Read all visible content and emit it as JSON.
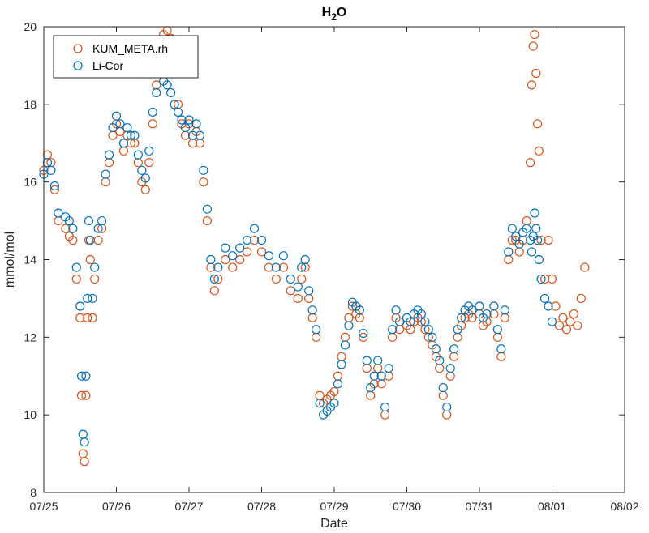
{
  "chart_data": {
    "type": "scatter",
    "title": {
      "main": "H",
      "sub": "2",
      "tail": "O"
    },
    "xlabel": "Date",
    "ylabel": "mmol/mol",
    "x_ticks": [
      "07/25",
      "07/26",
      "07/27",
      "07/28",
      "07/29",
      "07/30",
      "07/31",
      "08/01",
      "08/02"
    ],
    "y_ticks": [
      8,
      10,
      12,
      14,
      16,
      18,
      20
    ],
    "xlim": [
      "07/25",
      "08/02"
    ],
    "ylim": [
      8,
      20
    ],
    "legend": {
      "placement": "top-left"
    },
    "series": [
      {
        "name": "KUM_META.rh",
        "color": "#D95319",
        "marker": "open-circle",
        "points": [
          [
            0.0,
            16.3
          ],
          [
            0.05,
            16.7
          ],
          [
            0.1,
            16.5
          ],
          [
            0.15,
            15.8
          ],
          [
            0.2,
            15.0
          ],
          [
            0.3,
            14.8
          ],
          [
            0.35,
            14.6
          ],
          [
            0.4,
            14.5
          ],
          [
            0.45,
            13.5
          ],
          [
            0.5,
            12.5
          ],
          [
            0.52,
            10.5
          ],
          [
            0.54,
            9.0
          ],
          [
            0.56,
            8.8
          ],
          [
            0.58,
            10.5
          ],
          [
            0.6,
            12.5
          ],
          [
            0.62,
            14.5
          ],
          [
            0.64,
            14.0
          ],
          [
            0.67,
            12.5
          ],
          [
            0.7,
            13.5
          ],
          [
            0.75,
            14.5
          ],
          [
            0.8,
            14.8
          ],
          [
            0.85,
            16.0
          ],
          [
            0.9,
            16.5
          ],
          [
            0.95,
            17.2
          ],
          [
            1.0,
            17.5
          ],
          [
            1.05,
            17.3
          ],
          [
            1.1,
            16.8
          ],
          [
            1.15,
            17.2
          ],
          [
            1.2,
            17.0
          ],
          [
            1.25,
            17.0
          ],
          [
            1.3,
            16.5
          ],
          [
            1.35,
            16.0
          ],
          [
            1.4,
            15.8
          ],
          [
            1.45,
            16.5
          ],
          [
            1.5,
            17.5
          ],
          [
            1.55,
            18.5
          ],
          [
            1.6,
            19.5
          ],
          [
            1.65,
            19.8
          ],
          [
            1.7,
            19.9
          ],
          [
            1.75,
            19.7
          ],
          [
            1.8,
            19.5
          ],
          [
            1.85,
            18.0
          ],
          [
            1.9,
            17.5
          ],
          [
            1.95,
            17.2
          ],
          [
            2.0,
            17.5
          ],
          [
            2.05,
            17.0
          ],
          [
            2.1,
            17.3
          ],
          [
            2.15,
            17.0
          ],
          [
            2.2,
            16.0
          ],
          [
            2.25,
            15.0
          ],
          [
            2.3,
            13.8
          ],
          [
            2.35,
            13.2
          ],
          [
            2.4,
            13.5
          ],
          [
            2.5,
            14.0
          ],
          [
            2.6,
            13.8
          ],
          [
            2.7,
            14.0
          ],
          [
            2.8,
            14.2
          ],
          [
            2.9,
            14.5
          ],
          [
            3.0,
            14.2
          ],
          [
            3.1,
            13.8
          ],
          [
            3.2,
            13.5
          ],
          [
            3.3,
            13.8
          ],
          [
            3.4,
            13.2
          ],
          [
            3.5,
            13.0
          ],
          [
            3.55,
            13.5
          ],
          [
            3.6,
            13.8
          ],
          [
            3.65,
            13.0
          ],
          [
            3.7,
            12.5
          ],
          [
            3.75,
            12.0
          ],
          [
            3.8,
            10.5
          ],
          [
            3.85,
            10.3
          ],
          [
            3.9,
            10.4
          ],
          [
            3.95,
            10.5
          ],
          [
            4.0,
            10.6
          ],
          [
            4.05,
            11.0
          ],
          [
            4.1,
            11.5
          ],
          [
            4.15,
            12.0
          ],
          [
            4.2,
            12.5
          ],
          [
            4.25,
            12.8
          ],
          [
            4.3,
            12.6
          ],
          [
            4.35,
            12.5
          ],
          [
            4.4,
            12.0
          ],
          [
            4.45,
            11.2
          ],
          [
            4.5,
            10.5
          ],
          [
            4.55,
            10.8
          ],
          [
            4.6,
            11.2
          ],
          [
            4.65,
            10.8
          ],
          [
            4.7,
            10.0
          ],
          [
            4.75,
            11.0
          ],
          [
            4.8,
            12.0
          ],
          [
            4.85,
            12.5
          ],
          [
            4.9,
            12.2
          ],
          [
            5.0,
            12.3
          ],
          [
            5.05,
            12.2
          ],
          [
            5.1,
            12.4
          ],
          [
            5.15,
            12.5
          ],
          [
            5.2,
            12.4
          ],
          [
            5.25,
            12.2
          ],
          [
            5.3,
            12.0
          ],
          [
            5.35,
            11.8
          ],
          [
            5.4,
            11.5
          ],
          [
            5.45,
            11.2
          ],
          [
            5.5,
            10.5
          ],
          [
            5.55,
            10.0
          ],
          [
            5.6,
            11.0
          ],
          [
            5.65,
            11.5
          ],
          [
            5.7,
            12.0
          ],
          [
            5.75,
            12.3
          ],
          [
            5.8,
            12.5
          ],
          [
            5.85,
            12.6
          ],
          [
            5.9,
            12.5
          ],
          [
            6.0,
            12.6
          ],
          [
            6.05,
            12.3
          ],
          [
            6.1,
            12.4
          ],
          [
            6.2,
            12.6
          ],
          [
            6.25,
            12.0
          ],
          [
            6.3,
            11.5
          ],
          [
            6.35,
            12.5
          ],
          [
            6.4,
            14.0
          ],
          [
            6.45,
            14.5
          ],
          [
            6.5,
            14.5
          ],
          [
            6.55,
            14.2
          ],
          [
            6.6,
            14.5
          ],
          [
            6.65,
            15.0
          ],
          [
            6.7,
            16.5
          ],
          [
            6.72,
            18.5
          ],
          [
            6.74,
            19.5
          ],
          [
            6.76,
            19.8
          ],
          [
            6.78,
            18.8
          ],
          [
            6.8,
            17.5
          ],
          [
            6.82,
            16.8
          ],
          [
            6.85,
            14.5
          ],
          [
            6.9,
            13.5
          ],
          [
            6.95,
            14.5
          ],
          [
            7.0,
            13.5
          ],
          [
            7.05,
            12.8
          ],
          [
            7.1,
            12.3
          ],
          [
            7.15,
            12.5
          ],
          [
            7.2,
            12.2
          ],
          [
            7.25,
            12.4
          ],
          [
            7.3,
            12.6
          ],
          [
            7.35,
            12.3
          ],
          [
            7.4,
            13.0
          ],
          [
            7.45,
            13.8
          ]
        ]
      },
      {
        "name": "Li-Cor",
        "color": "#0072BD",
        "marker": "open-circle",
        "points": [
          [
            0.0,
            16.2
          ],
          [
            0.05,
            16.5
          ],
          [
            0.1,
            16.3
          ],
          [
            0.15,
            15.9
          ],
          [
            0.2,
            15.2
          ],
          [
            0.3,
            15.1
          ],
          [
            0.35,
            15.0
          ],
          [
            0.4,
            14.8
          ],
          [
            0.45,
            13.8
          ],
          [
            0.5,
            12.8
          ],
          [
            0.52,
            11.0
          ],
          [
            0.54,
            9.5
          ],
          [
            0.56,
            9.3
          ],
          [
            0.58,
            11.0
          ],
          [
            0.6,
            13.0
          ],
          [
            0.62,
            15.0
          ],
          [
            0.64,
            14.5
          ],
          [
            0.67,
            13.0
          ],
          [
            0.7,
            13.8
          ],
          [
            0.75,
            14.8
          ],
          [
            0.8,
            15.0
          ],
          [
            0.85,
            16.2
          ],
          [
            0.9,
            16.7
          ],
          [
            0.95,
            17.4
          ],
          [
            1.0,
            17.7
          ],
          [
            1.05,
            17.5
          ],
          [
            1.1,
            17.0
          ],
          [
            1.15,
            17.4
          ],
          [
            1.2,
            17.2
          ],
          [
            1.25,
            17.2
          ],
          [
            1.3,
            16.7
          ],
          [
            1.35,
            16.3
          ],
          [
            1.4,
            16.1
          ],
          [
            1.45,
            16.8
          ],
          [
            1.5,
            17.8
          ],
          [
            1.55,
            18.3
          ],
          [
            1.6,
            18.8
          ],
          [
            1.65,
            18.6
          ],
          [
            1.7,
            18.5
          ],
          [
            1.75,
            18.3
          ],
          [
            1.8,
            18.0
          ],
          [
            1.85,
            17.8
          ],
          [
            1.9,
            17.6
          ],
          [
            1.95,
            17.4
          ],
          [
            2.0,
            17.6
          ],
          [
            2.05,
            17.2
          ],
          [
            2.1,
            17.5
          ],
          [
            2.15,
            17.2
          ],
          [
            2.2,
            16.3
          ],
          [
            2.25,
            15.3
          ],
          [
            2.3,
            14.0
          ],
          [
            2.35,
            13.5
          ],
          [
            2.4,
            13.8
          ],
          [
            2.5,
            14.3
          ],
          [
            2.6,
            14.1
          ],
          [
            2.7,
            14.3
          ],
          [
            2.8,
            14.5
          ],
          [
            2.9,
            14.8
          ],
          [
            3.0,
            14.5
          ],
          [
            3.1,
            14.1
          ],
          [
            3.2,
            13.8
          ],
          [
            3.3,
            14.1
          ],
          [
            3.4,
            13.5
          ],
          [
            3.5,
            13.3
          ],
          [
            3.55,
            13.8
          ],
          [
            3.6,
            14.0
          ],
          [
            3.65,
            13.2
          ],
          [
            3.7,
            12.7
          ],
          [
            3.75,
            12.2
          ],
          [
            3.8,
            10.3
          ],
          [
            3.85,
            10.0
          ],
          [
            3.9,
            10.1
          ],
          [
            3.95,
            10.2
          ],
          [
            4.0,
            10.3
          ],
          [
            4.05,
            10.8
          ],
          [
            4.1,
            11.3
          ],
          [
            4.15,
            11.8
          ],
          [
            4.2,
            12.3
          ],
          [
            4.25,
            12.9
          ],
          [
            4.3,
            12.8
          ],
          [
            4.35,
            12.7
          ],
          [
            4.4,
            12.1
          ],
          [
            4.45,
            11.4
          ],
          [
            4.5,
            10.7
          ],
          [
            4.55,
            11.0
          ],
          [
            4.6,
            11.4
          ],
          [
            4.65,
            11.0
          ],
          [
            4.7,
            10.2
          ],
          [
            4.75,
            11.2
          ],
          [
            4.8,
            12.2
          ],
          [
            4.85,
            12.7
          ],
          [
            4.9,
            12.4
          ],
          [
            5.0,
            12.5
          ],
          [
            5.05,
            12.4
          ],
          [
            5.1,
            12.6
          ],
          [
            5.15,
            12.7
          ],
          [
            5.2,
            12.6
          ],
          [
            5.25,
            12.4
          ],
          [
            5.3,
            12.2
          ],
          [
            5.35,
            12.0
          ],
          [
            5.4,
            11.7
          ],
          [
            5.45,
            11.4
          ],
          [
            5.5,
            10.7
          ],
          [
            5.55,
            10.2
          ],
          [
            5.6,
            11.2
          ],
          [
            5.65,
            11.7
          ],
          [
            5.7,
            12.2
          ],
          [
            5.75,
            12.5
          ],
          [
            5.8,
            12.7
          ],
          [
            5.85,
            12.8
          ],
          [
            5.9,
            12.7
          ],
          [
            6.0,
            12.8
          ],
          [
            6.05,
            12.5
          ],
          [
            6.1,
            12.6
          ],
          [
            6.2,
            12.8
          ],
          [
            6.25,
            12.2
          ],
          [
            6.3,
            11.7
          ],
          [
            6.35,
            12.7
          ],
          [
            6.4,
            14.2
          ],
          [
            6.45,
            14.8
          ],
          [
            6.5,
            14.6
          ],
          [
            6.55,
            14.4
          ],
          [
            6.6,
            14.7
          ],
          [
            6.65,
            14.8
          ],
          [
            6.7,
            14.5
          ],
          [
            6.72,
            14.2
          ],
          [
            6.74,
            14.6
          ],
          [
            6.76,
            15.2
          ],
          [
            6.78,
            14.8
          ],
          [
            6.8,
            14.5
          ],
          [
            6.82,
            14.0
          ],
          [
            6.85,
            13.5
          ],
          [
            6.9,
            13.0
          ],
          [
            6.95,
            12.8
          ],
          [
            7.0,
            12.4
          ]
        ]
      }
    ]
  }
}
